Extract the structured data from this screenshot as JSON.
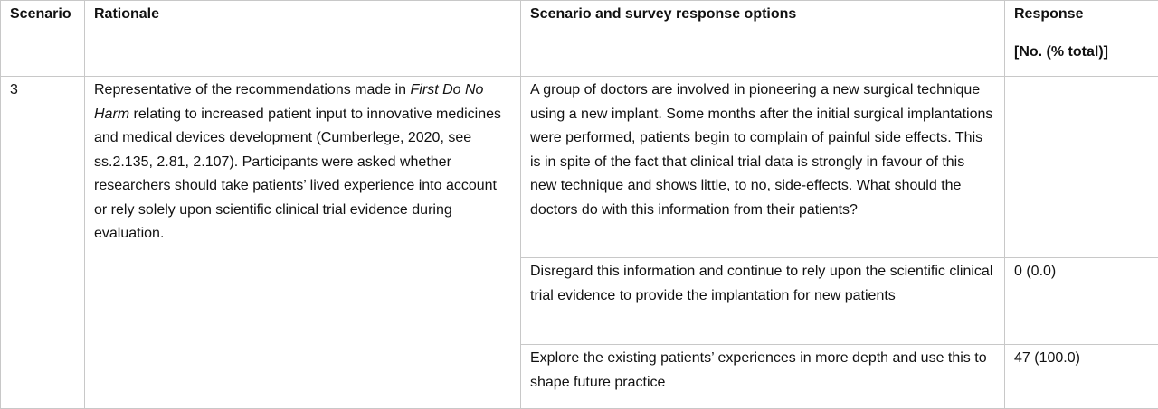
{
  "table": {
    "header": {
      "scenario": "Scenario",
      "rationale": "Rationale",
      "options": "Scenario and survey response options",
      "response": [
        "Response",
        "[No. (% total)]"
      ]
    },
    "row": {
      "scenario": "3",
      "rationale": [
        "Representative of the recommendations made in ",
        "First Do No Harm",
        " relating to increased patient input to innovative medicines and medical devices development (Cumberlege, 2020, see ss.2.135, 2.81, 2.107). Participants were asked whether researchers should take patients’ lived experience into account or rely solely upon scientific clinical trial evidence during evaluation."
      ],
      "question": "A group of doctors are involved in pioneering a new surgical technique using a new implant. Some months after the initial surgical implantations were performed, patients begin to complain of painful side effects. This is in spite of the fact that clinical trial data is strongly in favour of this new technique and shows little, to no, side-effects. What should the doctors do with this information from their patients?",
      "options": [
        {
          "text": "Disregard this information and continue to rely upon the scientific clinical trial evidence to provide the implantation for new patients",
          "response": "0 (0.0)"
        },
        {
          "text": "Explore the existing patients’ experiences in more depth and use this to shape future practice",
          "response": "47 (100.0)"
        }
      ]
    }
  }
}
